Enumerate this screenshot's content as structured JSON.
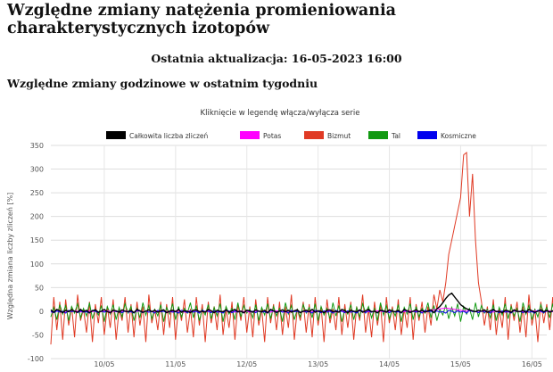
{
  "page": {
    "title": "Względne zmiany natężenia promieniowania charakterystycznych izotopów",
    "update_label": "Ostatnia aktualizacja: 16-05-2023 16:00",
    "section_title": "Względne zmiany godzinowe w ostatnim tygodniu"
  },
  "chart_data": {
    "type": "line",
    "title": "Kliknięcie w legendę włącza/wyłącza serie",
    "ylabel": "Względna zmiana liczby zliczeń [%]",
    "xlabel": "",
    "ylim": [
      -100,
      350
    ],
    "yticks": [
      -100,
      -50,
      0,
      50,
      100,
      150,
      200,
      250,
      300,
      350
    ],
    "grid": true,
    "legend_position": "top",
    "x_points": 168,
    "x_tick_labels": [
      "10/05",
      "11/05",
      "12/05",
      "13/05",
      "14/05",
      "15/05",
      "16/05"
    ],
    "x_tick_positions": [
      0,
      24,
      48,
      72,
      96,
      120,
      144
    ],
    "series": [
      {
        "name": "Całkowita liczba zliczeń",
        "color": "#000000",
        "values": [
          3,
          -2,
          4,
          1,
          -3,
          2,
          -1,
          3,
          0,
          -2,
          4,
          -1,
          2,
          -3,
          1,
          3,
          -2,
          0,
          4,
          -1,
          -3,
          2,
          1,
          -2,
          3,
          0,
          -1,
          2,
          -3,
          4,
          1,
          -2,
          0,
          3,
          -1,
          2,
          -2,
          1,
          3,
          -3,
          0,
          2,
          -1,
          4,
          -2,
          1,
          0,
          -3,
          2,
          3,
          -1,
          0,
          -2,
          4,
          1,
          -3,
          2,
          0,
          -1,
          3,
          -2,
          1,
          4,
          -1,
          0,
          -3,
          2,
          1,
          -2,
          3,
          0,
          -1,
          2,
          -3,
          4,
          1,
          -2,
          0,
          3,
          -1,
          2,
          -2,
          1,
          3,
          -3,
          0,
          2,
          -1,
          4,
          -2,
          1,
          0,
          -3,
          2,
          3,
          -1,
          0,
          -2,
          4,
          1,
          -3,
          2,
          0,
          -1,
          3,
          -2,
          1,
          4,
          -1,
          0,
          -3,
          2,
          1,
          -2,
          3,
          0,
          -1,
          2,
          -3,
          4,
          1,
          -2,
          0,
          3,
          -1,
          2,
          -2,
          1,
          3,
          -3,
          5,
          10,
          18,
          27,
          34,
          38,
          30,
          22,
          14,
          9,
          5,
          3,
          1,
          -1,
          2,
          0,
          3,
          -2,
          1,
          4,
          -1,
          0,
          -3,
          2,
          1,
          -2,
          3,
          0,
          -1,
          2,
          -3,
          4,
          1,
          -2,
          0,
          3,
          -1,
          2,
          -2,
          1,
          3,
          -3
        ]
      },
      {
        "name": "Potas",
        "color": "#ff00ff",
        "values": [
          -2,
          -1,
          0,
          1,
          -1,
          -2,
          0,
          -1,
          1,
          0,
          -1,
          -2,
          0,
          1,
          -1,
          0,
          -2,
          -1,
          0,
          1,
          -1,
          0,
          -1,
          -2,
          0,
          1,
          0,
          -1,
          -2,
          0,
          1,
          -1,
          0,
          -2,
          -1,
          0,
          1,
          -1,
          0,
          -1,
          -2,
          0,
          1,
          0,
          -1,
          -2,
          0,
          1,
          -1,
          0,
          -2,
          -1,
          0,
          1,
          -1,
          0,
          -1,
          -2,
          0,
          1,
          0,
          -1,
          -2,
          0,
          1,
          -1,
          0,
          -2,
          -1,
          0,
          1,
          -1,
          0,
          -1,
          -2,
          0,
          1,
          0,
          -1,
          -2,
          0,
          1,
          -1,
          0,
          -2,
          -1,
          0,
          1,
          -1,
          0,
          -1,
          -2,
          0,
          1,
          0,
          -1,
          -2,
          0,
          1,
          -1,
          0,
          -2,
          -1,
          0,
          1,
          -1,
          0,
          -1,
          -2,
          0,
          1,
          0,
          -1,
          -2,
          0,
          1,
          -1,
          0,
          -2,
          -1,
          0,
          1,
          -1,
          0,
          -1,
          -2,
          0,
          1,
          2,
          3,
          4,
          5,
          6,
          7,
          6,
          5,
          4,
          3,
          2,
          1,
          0,
          1,
          0,
          -1,
          -2,
          0,
          1,
          0,
          -1,
          -2,
          0,
          1,
          -1,
          0,
          -2,
          -1,
          0,
          1,
          -1,
          0,
          -1,
          -2,
          0,
          1,
          0,
          -1,
          -2,
          0,
          1,
          -1,
          0
        ]
      },
      {
        "name": "Bizmut",
        "color": "#e03a24",
        "values": [
          -70,
          30,
          -40,
          20,
          -60,
          25,
          -30,
          10,
          -55,
          35,
          -20,
          5,
          -45,
          20,
          -65,
          15,
          -25,
          30,
          -50,
          10,
          -35,
          25,
          -60,
          5,
          -20,
          30,
          -45,
          15,
          -55,
          20,
          -30,
          10,
          -65,
          35,
          -25,
          5,
          -40,
          20,
          -50,
          15,
          -35,
          30,
          -60,
          10,
          -20,
          25,
          -45,
          5,
          -55,
          30,
          -30,
          15,
          -65,
          20,
          -25,
          10,
          -40,
          35,
          -50,
          5,
          -35,
          20,
          -60,
          15,
          -20,
          30,
          -45,
          10,
          -55,
          25,
          -30,
          5,
          -65,
          30,
          -25,
          15,
          -40,
          20,
          -50,
          10,
          -35,
          35,
          -60,
          5,
          -20,
          20,
          -45,
          15,
          -55,
          30,
          -30,
          10,
          -65,
          25,
          -25,
          5,
          -40,
          30,
          -50,
          15,
          -35,
          20,
          -60,
          10,
          -20,
          35,
          -45,
          5,
          -55,
          20,
          -30,
          15,
          -65,
          30,
          -25,
          10,
          -40,
          25,
          -50,
          5,
          -35,
          30,
          -60,
          15,
          -20,
          20,
          -45,
          10,
          -30,
          35,
          5,
          45,
          20,
          60,
          120,
          150,
          180,
          210,
          240,
          330,
          335,
          200,
          290,
          150,
          60,
          20,
          -30,
          10,
          -40,
          25,
          -50,
          5,
          -35,
          30,
          -60,
          15,
          -20,
          20,
          -45,
          10,
          -55,
          35,
          -30,
          5,
          -65,
          20,
          -25,
          15,
          -40,
          30,
          -50,
          10,
          -35,
          -60,
          -20
        ]
      },
      {
        "name": "Tal",
        "color": "#119911",
        "values": [
          -12,
          8,
          -18,
          14,
          -6,
          12,
          -20,
          10,
          -4,
          16,
          -14,
          6,
          -10,
          18,
          -16,
          4,
          -8,
          12,
          -22,
          10,
          -6,
          14,
          -18,
          8,
          -12,
          16,
          -4,
          10,
          -20,
          6,
          -14,
          18,
          -8,
          12,
          -16,
          4,
          -10,
          14,
          -22,
          8,
          -6,
          16,
          -18,
          10,
          -12,
          6,
          -4,
          18,
          -14,
          12,
          -20,
          4,
          -8,
          14,
          -16,
          8,
          -10,
          16,
          -22,
          10,
          -6,
          6,
          -18,
          18,
          -12,
          12,
          -4,
          4,
          -14,
          14,
          -20,
          8,
          -8,
          16,
          -16,
          10,
          -10,
          6,
          -22,
          18,
          -6,
          12,
          -18,
          4,
          -12,
          14,
          -4,
          8,
          -14,
          16,
          -20,
          10,
          -8,
          6,
          -16,
          18,
          -10,
          12,
          -22,
          4,
          -6,
          14,
          -18,
          8,
          -12,
          16,
          -4,
          10,
          -14,
          6,
          -20,
          18,
          -8,
          12,
          -16,
          4,
          -10,
          14,
          -22,
          8,
          -6,
          16,
          -18,
          10,
          -12,
          6,
          -4,
          18,
          -14,
          12,
          -20,
          4,
          -8,
          14,
          -16,
          8,
          -10,
          16,
          -22,
          10,
          -6,
          6,
          -18,
          18,
          -12,
          12,
          -4,
          4,
          -14,
          14,
          -20,
          8,
          -8,
          16,
          -16,
          10,
          -10,
          6,
          -22,
          18,
          -6,
          12,
          -18,
          4,
          -12,
          14,
          -4,
          8,
          -14,
          16,
          -20,
          10,
          -8,
          6
        ]
      },
      {
        "name": "Kosmiczne",
        "color": "#0000ee",
        "values": [
          0,
          -3,
          1,
          -2,
          0,
          -4,
          2,
          -1,
          0,
          -3,
          1,
          -2,
          -1,
          -4,
          2,
          0,
          -3,
          1,
          -2,
          0,
          -4,
          2,
          -1,
          0,
          -3,
          1,
          -2,
          -1,
          -4,
          2,
          0,
          -3,
          1,
          -2,
          0,
          -4,
          2,
          -1,
          0,
          -3,
          1,
          -2,
          -1,
          -4,
          2,
          0,
          -3,
          1,
          -2,
          0,
          -4,
          2,
          -1,
          0,
          -3,
          1,
          -2,
          -1,
          -4,
          2,
          0,
          -3,
          1,
          -2,
          0,
          -4,
          2,
          -1,
          0,
          -3,
          1,
          -2,
          -1,
          -4,
          2,
          0,
          -3,
          1,
          -2,
          0,
          -4,
          2,
          -1,
          0,
          -3,
          1,
          -2,
          -1,
          -4,
          2,
          0,
          -3,
          1,
          -2,
          0,
          -4,
          2,
          -1,
          0,
          -3,
          1,
          -2,
          -1,
          -4,
          2,
          0,
          -3,
          1,
          -2,
          0,
          -4,
          2,
          -1,
          0,
          -3,
          1,
          -2,
          -1,
          -4,
          2,
          0,
          -3,
          1,
          -2,
          0,
          -4,
          2,
          -1,
          0,
          -3,
          1,
          -2,
          -1,
          -4,
          2,
          0,
          -3,
          1,
          -2,
          0,
          -4,
          2,
          -1,
          0,
          -3,
          1,
          -2,
          -1,
          -4,
          2,
          0,
          -3,
          1,
          -2,
          0,
          -4,
          2,
          -1,
          0,
          -3,
          1,
          -2,
          -1,
          -4,
          2,
          0,
          -3,
          1,
          -2,
          0,
          -4,
          2,
          -1
        ]
      }
    ]
  }
}
